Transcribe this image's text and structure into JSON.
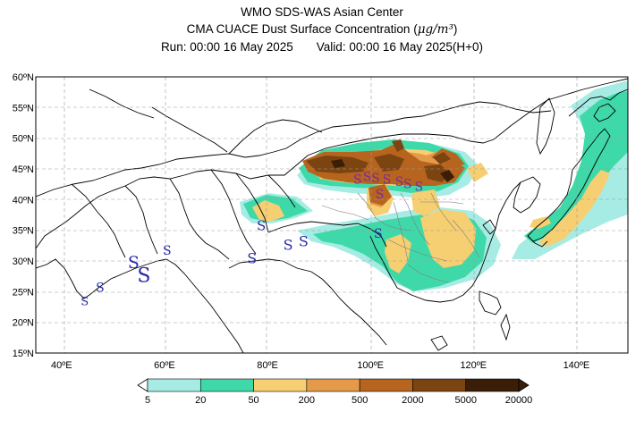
{
  "title": {
    "line1": "WMO SDS-WAS Asian Center",
    "line2_prefix": "CMA CUACE Dust Surface Concentration (",
    "line2_unit": "μg/m³",
    "line2_suffix": ")",
    "run": "Run: 00:00 16 May 2025",
    "valid": "Valid: 00:00 16 May 2025(H+0)"
  },
  "map": {
    "lon_range": [
      35,
      150
    ],
    "lat_range": [
      15,
      60
    ],
    "lon_ticks": [
      "40ºE",
      "60ºE",
      "80ºE",
      "100ºE",
      "120ºE",
      "140ºE"
    ],
    "lat_ticks": [
      "15ºN",
      "20ºN",
      "25ºN",
      "30ºN",
      "35ºN",
      "40ºN",
      "45ºN",
      "50ºN",
      "55ºN",
      "60ºN"
    ],
    "grid": true,
    "dust_storm_symbol": "S",
    "dust_storm_symbol_color": "#2a2aa8"
  },
  "colorbar": {
    "levels": [
      "5",
      "20",
      "50",
      "200",
      "500",
      "2000",
      "5000",
      "20000"
    ],
    "colors": [
      "#a6ece4",
      "#3fd9a9",
      "#f6cf72",
      "#e59a4a",
      "#b7641f",
      "#7c4410",
      "#3a1e08"
    ]
  }
}
